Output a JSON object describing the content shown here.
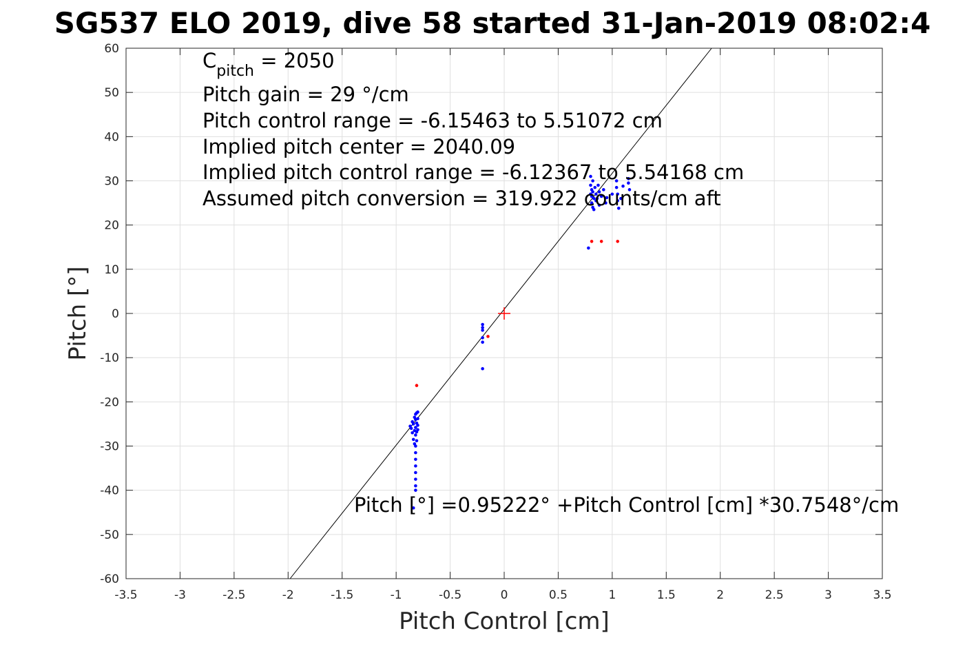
{
  "chart_data": {
    "type": "scatter",
    "title": "SG537 ELO 2019, dive 58 started 31-Jan-2019 08:02:4",
    "xlabel": "Pitch Control [cm]",
    "ylabel": "Pitch [°]",
    "xlim": [
      -3.5,
      3.5
    ],
    "ylim": [
      -60,
      60
    ],
    "xticks": [
      -3.5,
      -3,
      -2.5,
      -2,
      -1.5,
      -1,
      -0.5,
      0,
      0.5,
      1,
      1.5,
      2,
      2.5,
      3,
      3.5
    ],
    "yticks": [
      -60,
      -50,
      -40,
      -30,
      -20,
      -10,
      0,
      10,
      20,
      30,
      40,
      50,
      60
    ],
    "xtick_labels": [
      "-3.5",
      "-3",
      "-2.5",
      "-2",
      "-1.5",
      "-1",
      "-0.5",
      "0",
      "0.5",
      "1",
      "1.5",
      "2",
      "2.5",
      "3",
      "3.5"
    ],
    "ytick_labels": [
      "-60",
      "-50",
      "-40",
      "-30",
      "-20",
      "-10",
      "0",
      "10",
      "20",
      "30",
      "40",
      "50",
      "60"
    ],
    "grid": true,
    "annotations": {
      "c_pitch_symbol": "C",
      "c_pitch_subscript": "pitch",
      "c_pitch_value": " = 2050",
      "lines": [
        "Pitch gain = 29 °/cm",
        "Pitch control range = -6.15463 to 5.51072 cm",
        "Implied pitch center = 2040.09",
        "Implied pitch control range = -6.12367 to 5.54168 cm",
        "Assumed pitch conversion = 319.922 counts/cm aft"
      ],
      "fit_equation": "Pitch [°] =0.95222° +Pitch Control [cm] *30.7548°/cm"
    },
    "fit_line": {
      "intercept": 0.95222,
      "slope": 30.7548,
      "color": "#000000"
    },
    "center_marker": {
      "x": 0,
      "y": 0,
      "color": "#ff0000",
      "shape": "plus"
    },
    "series": [
      {
        "color": "#0000ff",
        "points": [
          [
            -0.87,
            -25.5
          ],
          [
            -0.86,
            -26.0
          ],
          [
            -0.85,
            -24.5
          ],
          [
            -0.85,
            -27.0
          ],
          [
            -0.84,
            -28.5
          ],
          [
            -0.84,
            -25.0
          ],
          [
            -0.83,
            -23.5
          ],
          [
            -0.83,
            -26.5
          ],
          [
            -0.83,
            -29.5
          ],
          [
            -0.82,
            -22.8
          ],
          [
            -0.82,
            -24.0
          ],
          [
            -0.82,
            -25.8
          ],
          [
            -0.82,
            -27.5
          ],
          [
            -0.82,
            -30.0
          ],
          [
            -0.82,
            -31.5
          ],
          [
            -0.82,
            -33.0
          ],
          [
            -0.82,
            -34.5
          ],
          [
            -0.82,
            -36.0
          ],
          [
            -0.82,
            -37.5
          ],
          [
            -0.82,
            -39.0
          ],
          [
            -0.82,
            -40.0
          ],
          [
            -0.81,
            -22.5
          ],
          [
            -0.81,
            -24.8
          ],
          [
            -0.81,
            -26.8
          ],
          [
            -0.81,
            -28.8
          ],
          [
            -0.8,
            -22.3
          ],
          [
            -0.8,
            -23.8
          ],
          [
            -0.8,
            -25.3
          ],
          [
            -0.8,
            -26.3
          ],
          [
            -0.84,
            -44.0
          ],
          [
            -0.2,
            -2.5
          ],
          [
            -0.2,
            -3.2
          ],
          [
            -0.2,
            -3.8
          ],
          [
            -0.2,
            -5.5
          ],
          [
            -0.2,
            -6.5
          ],
          [
            -0.2,
            -12.5
          ],
          [
            0.78,
            14.8
          ],
          [
            0.8,
            27.0
          ],
          [
            0.8,
            29.0
          ],
          [
            0.8,
            31.0
          ],
          [
            0.81,
            25.0
          ],
          [
            0.81,
            26.5
          ],
          [
            0.81,
            28.0
          ],
          [
            0.82,
            24.0
          ],
          [
            0.82,
            27.5
          ],
          [
            0.82,
            30.0
          ],
          [
            0.83,
            23.5
          ],
          [
            0.83,
            26.0
          ],
          [
            0.84,
            28.5
          ],
          [
            0.85,
            25.5
          ],
          [
            0.85,
            27.0
          ],
          [
            0.86,
            26.0
          ],
          [
            0.87,
            29.0
          ],
          [
            0.88,
            24.5
          ],
          [
            0.88,
            27.5
          ],
          [
            0.9,
            26.5
          ],
          [
            0.92,
            28.0
          ],
          [
            0.94,
            25.0
          ],
          [
            1.04,
            30.0
          ],
          [
            1.04,
            28.5
          ],
          [
            1.05,
            27.0
          ],
          [
            1.05,
            25.5
          ],
          [
            1.06,
            23.8
          ],
          [
            1.08,
            26.0
          ],
          [
            1.1,
            28.8
          ],
          [
            1.15,
            29.5
          ],
          [
            1.15,
            30.5
          ],
          [
            1.16,
            28.0
          ],
          [
            1.0,
            27.0
          ],
          [
            0.95,
            26.2
          ]
        ]
      },
      {
        "color": "#ff0000",
        "points": [
          [
            -0.81,
            -16.3
          ],
          [
            -0.15,
            -5.2
          ],
          [
            0.81,
            16.3
          ],
          [
            0.9,
            16.3
          ],
          [
            1.05,
            16.3
          ]
        ]
      }
    ]
  }
}
